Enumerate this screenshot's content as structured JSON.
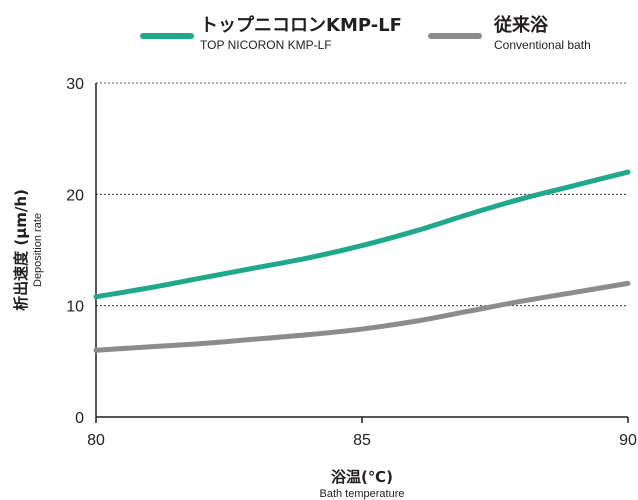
{
  "legend": [
    {
      "label_jp": "トップニコロンKMP-LF",
      "label_en": "TOP NICORON KMP-LF",
      "color": "#1fa98a"
    },
    {
      "label_jp": "従来浴",
      "label_en": "Conventional bath",
      "color": "#8c8c8f"
    }
  ],
  "chart_data": {
    "type": "line",
    "xlabel_jp": "浴温(℃)",
    "xlabel_en": "Bath temperature",
    "ylabel_jp": "析出速度 (μm/h)",
    "ylabel_en": "Deposition rate",
    "xlim": [
      80,
      90
    ],
    "ylim": [
      0,
      30
    ],
    "xticks": [
      "80",
      "85",
      "90"
    ],
    "yticks": [
      "0",
      "10",
      "20",
      "30"
    ],
    "grid": "horizontal dashed",
    "legend_position": "top",
    "series": [
      {
        "name": "トップニコロンKMP-LF",
        "color": "#1fa98a",
        "x": [
          80,
          81,
          82,
          83,
          84,
          85,
          86,
          87,
          88,
          89,
          90
        ],
        "y": [
          10.8,
          11.6,
          12.5,
          13.4,
          14.3,
          15.4,
          16.7,
          18.2,
          19.6,
          20.8,
          22.0
        ]
      },
      {
        "name": "従来浴",
        "color": "#8c8c8f",
        "x": [
          80,
          81,
          82,
          83,
          84,
          85,
          86,
          87,
          88,
          89,
          90
        ],
        "y": [
          6.0,
          6.3,
          6.6,
          7.0,
          7.4,
          7.9,
          8.6,
          9.5,
          10.4,
          11.2,
          12.0
        ]
      }
    ]
  }
}
